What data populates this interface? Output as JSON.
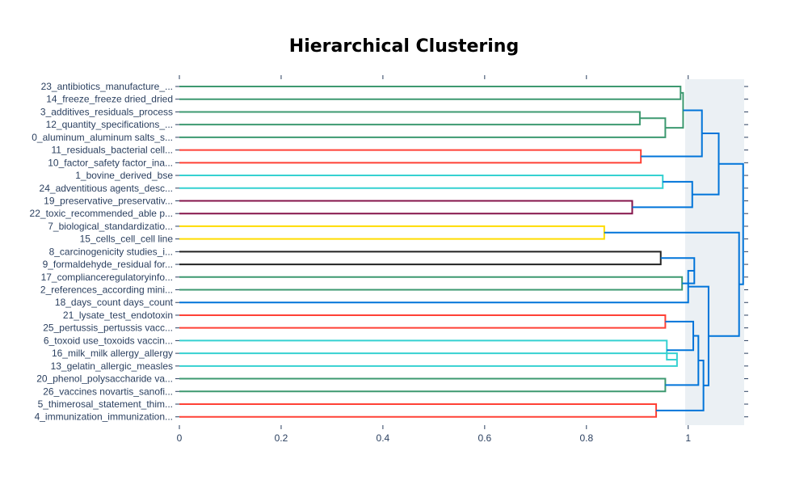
{
  "chart_data": {
    "type": "dendrogram",
    "title": "Hierarchical Clustering",
    "xlabel": "",
    "ylabel": "",
    "xlim": [
      0,
      1.11
    ],
    "x_ticks": [
      0,
      0.2,
      0.4,
      0.6,
      0.8,
      1
    ],
    "x_tick_labels": [
      "0",
      "0.2",
      "0.4",
      "0.6",
      "0.8",
      "1"
    ],
    "leaves": [
      "23_antibiotics_manufacture_...",
      "14_freeze_freeze dried_dried",
      "3_additives_residuals_process",
      "12_quantity_specifications_...",
      "0_aluminum_aluminum salts_s...",
      "11_residuals_bacterial cell...",
      "10_factor_safety factor_ina...",
      "1_bovine_derived_bse",
      "24_adventitious agents_desc...",
      "19_preservative_preservativ...",
      "22_toxic_recommended_able p...",
      "7_biological_standardizatio...",
      "15_cells_cell_cell line",
      "8_carcinogenicity studies_i...",
      "9_formaldehyde_residual for...",
      "17_complianceregulatoryinfo...",
      "2_references_according mini...",
      "18_days_count days_count",
      "21_lysate_test_endotoxin",
      "25_pertussis_pertussis vacc...",
      "6_toxoid use_toxoids vaccin...",
      "16_milk_milk allergy_allergy",
      "13_gelatin_allergic_measles",
      "20_phenol_polysaccharide va...",
      "26_vaccines novartis_sanofi...",
      "5_thimerosal_statement_thim...",
      "4_immunization_immunization..."
    ],
    "merges": [
      {
        "id": "A",
        "a": 2,
        "b": 3,
        "height": 0.905,
        "color": "#3d9970"
      },
      {
        "id": "B",
        "a": "A",
        "b": 4,
        "height": 0.955,
        "color": "#3d9970"
      },
      {
        "id": "C",
        "a": 0,
        "b": 1,
        "height": 0.985,
        "color": "#3d9970"
      },
      {
        "id": "D",
        "a": "C",
        "b": "B",
        "height": 0.99,
        "color": "#3d9970"
      },
      {
        "id": "E",
        "a": 5,
        "b": 6,
        "height": 0.907,
        "color": "#ff4136"
      },
      {
        "id": "F",
        "a": "D",
        "b": "E",
        "height": 1.027,
        "color": "#0074d9"
      },
      {
        "id": "G",
        "a": 7,
        "b": 8,
        "height": 0.95,
        "color": "#35d1d1"
      },
      {
        "id": "H",
        "a": 9,
        "b": 10,
        "height": 0.89,
        "color": "#85144b"
      },
      {
        "id": "I",
        "a": "G",
        "b": "H",
        "height": 1.008,
        "color": "#0074d9"
      },
      {
        "id": "J",
        "a": "F",
        "b": "I",
        "height": 1.06,
        "color": "#0074d9"
      },
      {
        "id": "K",
        "a": 11,
        "b": 12,
        "height": 0.835,
        "color": "#ffdc00"
      },
      {
        "id": "L",
        "a": 13,
        "b": 14,
        "height": 0.946,
        "color": "#222222"
      },
      {
        "id": "M",
        "a": 15,
        "b": 16,
        "height": 0.988,
        "color": "#3d9970"
      },
      {
        "id": "N",
        "a": "L",
        "b": "M",
        "height": 1.012,
        "color": "#0074d9"
      },
      {
        "id": "O",
        "a": "N",
        "b": 17,
        "height": 1.0,
        "color": "#0074d9"
      },
      {
        "id": "P",
        "a": 18,
        "b": 19,
        "height": 0.955,
        "color": "#ff4136"
      },
      {
        "id": "Q",
        "a": 21,
        "b": 22,
        "height": 0.978,
        "color": "#35d1d1"
      },
      {
        "id": "R",
        "a": 20,
        "b": "Q",
        "height": 0.958,
        "color": "#35d1d1"
      },
      {
        "id": "S",
        "a": "P",
        "b": "R",
        "height": 1.01,
        "color": "#0074d9"
      },
      {
        "id": "T",
        "a": 23,
        "b": 24,
        "height": 0.955,
        "color": "#3d9970"
      },
      {
        "id": "U",
        "a": "S",
        "b": "T",
        "height": 1.02,
        "color": "#0074d9"
      },
      {
        "id": "V",
        "a": 25,
        "b": 26,
        "height": 0.937,
        "color": "#ff4136"
      },
      {
        "id": "W",
        "a": "U",
        "b": "V",
        "height": 1.03,
        "color": "#0074d9"
      },
      {
        "id": "X",
        "a": "O",
        "b": "W",
        "height": 1.04,
        "color": "#0074d9"
      },
      {
        "id": "Y",
        "a": "K",
        "b": "X",
        "height": 1.1,
        "color": "#0074d9"
      },
      {
        "id": "Z",
        "a": "J",
        "b": "Y",
        "height": 1.108,
        "color": "#0074d9"
      }
    ],
    "grid": false,
    "plot_background": "#ebf0f4",
    "tick_color": "#2a3f5f"
  }
}
